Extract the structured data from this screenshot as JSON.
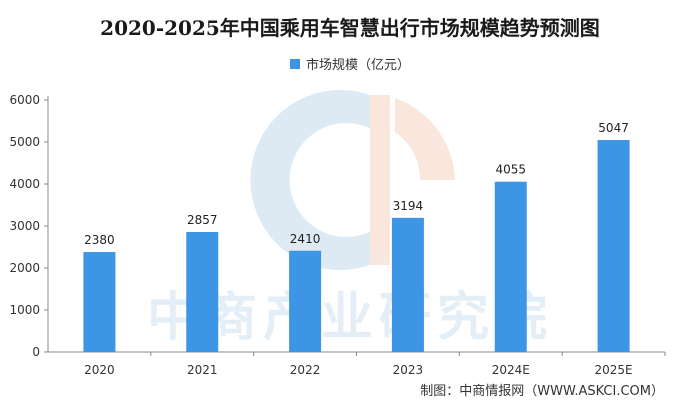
{
  "chart_data": {
    "type": "bar",
    "title": "2020-2025年中国乘用车智慧出行市场规模趋势预测图",
    "categories": [
      "2020",
      "2021",
      "2022",
      "2023",
      "2024E",
      "2025E"
    ],
    "series": [
      {
        "name": "市场规模（亿元）",
        "values": [
          2380,
          2857,
          2410,
          3194,
          4055,
          5047
        ]
      }
    ],
    "data_labels": [
      "2380",
      "2857",
      "2410",
      "3194",
      "4055",
      "5047"
    ],
    "ylim": [
      0,
      6000
    ],
    "yticks": [
      "0",
      "1000",
      "2000",
      "3000",
      "4000",
      "5000",
      "6000"
    ],
    "xlabel": "",
    "ylabel": "",
    "legend_position": "top-center",
    "grid": false,
    "bar_color": "#3d95e6"
  },
  "watermark": {
    "text": "中商产业研究院"
  },
  "source_note": "制图：中商情报网（WWW.ASKCI.COM）"
}
